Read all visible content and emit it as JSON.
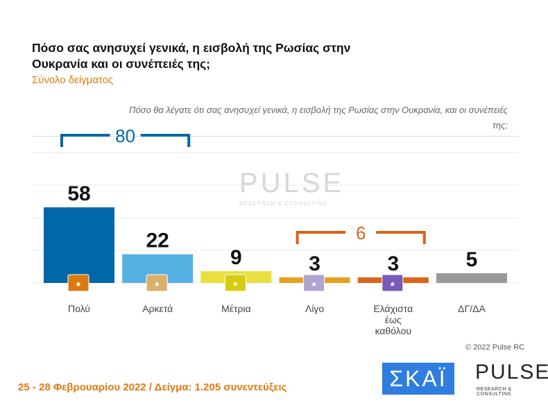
{
  "title": "Πόσο σας ανησυχεί γενικά, η εισβολή της Ρωσίας στην Ουκρανία και οι συνέπειές της;",
  "subtitle": "Σύνολο δείγματος",
  "question": "Πόσο θα λέγατε ότι σας ανησυχεί γενικά, η εισβολή της Ρωσίας στην Ουκρανία, και οι συνέπειές της;",
  "watermark": {
    "name": "PULSE",
    "tag": "RESEARCH & CONSULTING"
  },
  "footer": "25 - 28  Φεβρουαρίου  2022  /  Δείγμα:  1.205 συνεντεύξεις",
  "copyright": "© 2022 Pulse RC",
  "logos": {
    "skai": "ΣΚΑΪ",
    "pulse": "PULSE",
    "pulse_tag": "RESEARCH & CONSULTING"
  },
  "chart_data": {
    "type": "bar",
    "categories": [
      "Πολύ",
      "Αρκετά",
      "Μέτρια",
      "Λίγο",
      "Ελάχιστα έως καθόλου",
      "ΔΓ/ΔΑ"
    ],
    "values": [
      58,
      22,
      9,
      3,
      3,
      5
    ],
    "colors": [
      "#0068a8",
      "#56b0e4",
      "#e9e040",
      "#e5a11c",
      "#d9641a",
      "#9a9a9a"
    ],
    "icon_colors": [
      "#d97a10",
      "#dbb06a",
      "#d8cc10",
      "#b0a5d0",
      "#7a5ab8",
      ""
    ],
    "ylim": [
      0,
      100
    ],
    "grid": true,
    "groups": [
      {
        "label": "80",
        "categories": [
          "Πολύ",
          "Αρκετά"
        ],
        "color": "#0068a8"
      },
      {
        "label": "6",
        "categories": [
          "Λίγο",
          "Ελάχιστα έως καθόλου"
        ],
        "color": "#d9641a"
      }
    ]
  }
}
